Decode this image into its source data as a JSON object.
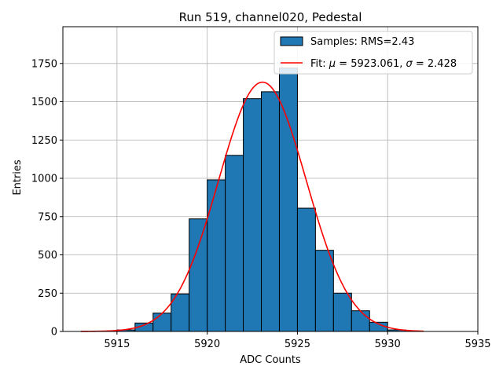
{
  "chart_data": {
    "type": "histogram",
    "title": "Run 519, channel020, Pedestal",
    "xlabel": "ADC Counts",
    "ylabel": "Entries",
    "xlim": [
      5912,
      5935
    ],
    "ylim": [
      0,
      1990
    ],
    "xticks": [
      5915,
      5920,
      5925,
      5930,
      5935
    ],
    "yticks": [
      0,
      250,
      500,
      750,
      1000,
      1250,
      1500,
      1750
    ],
    "grid": true,
    "legend_position": "top-right",
    "bins": {
      "edges": [
        5915,
        5916,
        5917,
        5918,
        5919,
        5920,
        5921,
        5922,
        5923,
        5924,
        5925,
        5926,
        5927,
        5928,
        5929,
        5930,
        5931
      ],
      "counts": [
        10,
        55,
        120,
        245,
        735,
        990,
        1150,
        1520,
        1565,
        1720,
        805,
        530,
        250,
        135,
        60,
        10
      ],
      "color": "#1f77b4",
      "edgecolor": "#000000"
    },
    "fit": {
      "mu": 5923.061,
      "sigma": 2.428,
      "amplitude": 1628,
      "x_range": [
        5913,
        5932
      ],
      "color": "#ff0000"
    },
    "legend": [
      {
        "label": "Samples: RMS=2.43",
        "kind": "patch",
        "color": "#1f77b4"
      },
      {
        "label_prefix": "Fit: ",
        "mu_symbol": "μ",
        "mu_text": " = 5923.061, ",
        "sigma_symbol": "σ",
        "sigma_text": " = 2.428",
        "kind": "line",
        "color": "#ff0000"
      }
    ]
  }
}
